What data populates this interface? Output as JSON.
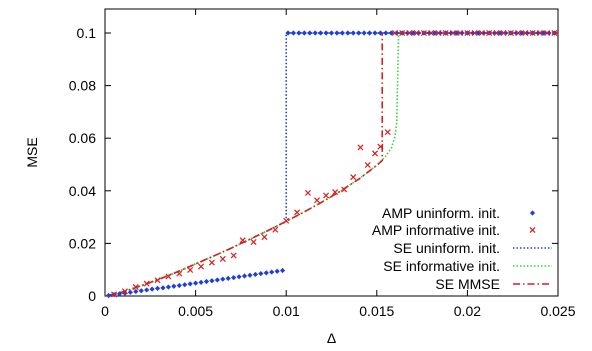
{
  "chart_data": {
    "type": "line",
    "xlabel": "Δ",
    "ylabel": "MSE",
    "xlim": [
      0,
      0.025
    ],
    "ylim": [
      0,
      0.1
    ],
    "x_ticks": [
      "0",
      "0.005",
      "0.01",
      "0.015",
      "0.02",
      "0.025"
    ],
    "x_tick_values": [
      0,
      0.005,
      0.01,
      0.015,
      0.02,
      0.025
    ],
    "y_ticks": [
      "0",
      "0.02",
      "0.04",
      "0.06",
      "0.08",
      "0.1"
    ],
    "y_tick_values": [
      0,
      0.02,
      0.04,
      0.06,
      0.08,
      0.1
    ],
    "grid": false,
    "legend_position": "bottom-right",
    "series": [
      {
        "name": "AMP uninform. init.",
        "kind": "points",
        "marker": "diamond",
        "color": "#1f3fd8",
        "x": [
          0.0002,
          0.0005,
          0.0008,
          0.0011,
          0.0014,
          0.0017,
          0.002,
          0.0023,
          0.0026,
          0.0029,
          0.0032,
          0.0035,
          0.0038,
          0.0041,
          0.0044,
          0.0047,
          0.005,
          0.0053,
          0.0056,
          0.0059,
          0.0062,
          0.0065,
          0.0068,
          0.0071,
          0.0074,
          0.0077,
          0.008,
          0.0083,
          0.0086,
          0.0089,
          0.0092,
          0.0095,
          0.0098,
          0.0101,
          0.0104,
          0.0107,
          0.011,
          0.0113,
          0.0116,
          0.0119,
          0.0122,
          0.0125,
          0.0128,
          0.0131,
          0.0134,
          0.0137,
          0.014,
          0.0143,
          0.0146,
          0.0149,
          0.0152,
          0.0155,
          0.0158,
          0.0161,
          0.0164,
          0.0167,
          0.017,
          0.0173,
          0.0176,
          0.0179,
          0.0182,
          0.0185,
          0.0188,
          0.0191,
          0.0194,
          0.0197,
          0.02,
          0.0203,
          0.0206,
          0.0209,
          0.0212,
          0.0215,
          0.0218,
          0.0221,
          0.0224,
          0.0227,
          0.023,
          0.0233,
          0.0236,
          0.0239,
          0.0242,
          0.0245,
          0.0248
        ],
        "y": [
          0.0002,
          0.0005,
          0.0008,
          0.0011,
          0.0014,
          0.0017,
          0.002,
          0.0023,
          0.0026,
          0.0029,
          0.0031,
          0.0034,
          0.0037,
          0.004,
          0.0043,
          0.0046,
          0.0049,
          0.0052,
          0.0055,
          0.0058,
          0.0061,
          0.0064,
          0.0067,
          0.007,
          0.0073,
          0.0076,
          0.0079,
          0.0082,
          0.0085,
          0.0088,
          0.0091,
          0.0094,
          0.0097,
          0.1,
          0.1,
          0.1,
          0.1,
          0.1,
          0.1,
          0.1,
          0.1,
          0.1,
          0.1,
          0.1,
          0.1,
          0.1,
          0.1,
          0.1,
          0.1,
          0.1,
          0.1,
          0.1,
          0.1,
          0.1,
          0.1,
          0.1,
          0.1,
          0.1,
          0.1,
          0.1,
          0.1,
          0.1,
          0.1,
          0.1,
          0.1,
          0.1,
          0.1,
          0.1,
          0.1,
          0.1,
          0.1,
          0.1,
          0.1,
          0.1,
          0.1,
          0.1,
          0.1,
          0.1,
          0.1,
          0.1,
          0.1,
          0.1,
          0.1
        ]
      },
      {
        "name": "AMP informative init.",
        "kind": "points",
        "marker": "x",
        "color": "#d81f1f",
        "x": [
          0.0005,
          0.0011,
          0.0017,
          0.0023,
          0.0029,
          0.0035,
          0.0041,
          0.0047,
          0.0053,
          0.0059,
          0.0065,
          0.0071,
          0.0076,
          0.0082,
          0.0088,
          0.0094,
          0.01,
          0.0106,
          0.0112,
          0.0117,
          0.0122,
          0.0127,
          0.0132,
          0.0137,
          0.0141,
          0.0145,
          0.0149,
          0.0152,
          0.0156,
          0.016,
          0.0164,
          0.0168,
          0.0172,
          0.0176,
          0.018,
          0.0184,
          0.0188,
          0.0192,
          0.0196,
          0.02,
          0.0204,
          0.0208,
          0.0212,
          0.0216,
          0.022,
          0.0224,
          0.0228,
          0.0232,
          0.0236,
          0.024,
          0.0244,
          0.0248
        ],
        "y": [
          0.0006,
          0.0018,
          0.0034,
          0.0047,
          0.006,
          0.0074,
          0.0085,
          0.0099,
          0.0112,
          0.0127,
          0.0141,
          0.0154,
          0.0212,
          0.0205,
          0.0224,
          0.0252,
          0.0286,
          0.0318,
          0.0392,
          0.0364,
          0.0382,
          0.0395,
          0.0405,
          0.0452,
          0.0565,
          0.0498,
          0.0542,
          0.0568,
          0.0623,
          0.1,
          0.1,
          0.1,
          0.1,
          0.1,
          0.1,
          0.1,
          0.1,
          0.1,
          0.1,
          0.1,
          0.1,
          0.1,
          0.1,
          0.1,
          0.1,
          0.1,
          0.1,
          0.1,
          0.1,
          0.1,
          0.1,
          0.1
        ]
      },
      {
        "name": "SE uninform. init.",
        "kind": "line",
        "dash": "dotted",
        "color": "#1f3fd8",
        "x": [
          0,
          0.001,
          0.002,
          0.003,
          0.004,
          0.005,
          0.006,
          0.007,
          0.008,
          0.009,
          0.01,
          0.01,
          0.025
        ],
        "y": [
          0,
          0.0016,
          0.0039,
          0.0064,
          0.0092,
          0.0122,
          0.0152,
          0.0183,
          0.0216,
          0.0249,
          0.0284,
          0.1,
          0.1
        ]
      },
      {
        "name": "SE informative init.",
        "kind": "line",
        "dash": "dotted",
        "color": "#2fd82f",
        "x": [
          0,
          0.001,
          0.002,
          0.003,
          0.004,
          0.005,
          0.006,
          0.007,
          0.008,
          0.009,
          0.01,
          0.011,
          0.012,
          0.013,
          0.014,
          0.015,
          0.0155,
          0.0158,
          0.016,
          0.0161,
          0.0162,
          0.025
        ],
        "y": [
          0,
          0.0016,
          0.0039,
          0.0064,
          0.0092,
          0.0122,
          0.0152,
          0.0183,
          0.0216,
          0.0249,
          0.0284,
          0.032,
          0.0358,
          0.0399,
          0.0444,
          0.0497,
          0.0532,
          0.0562,
          0.0605,
          0.066,
          0.1,
          0.1
        ]
      },
      {
        "name": "SE MMSE",
        "kind": "line",
        "dash": "dashdot",
        "color": "#d81f1f",
        "x": [
          0,
          0.001,
          0.002,
          0.003,
          0.004,
          0.005,
          0.006,
          0.007,
          0.008,
          0.009,
          0.01,
          0.011,
          0.012,
          0.013,
          0.014,
          0.015,
          0.0153,
          0.0153,
          0.025
        ],
        "y": [
          0,
          0.0016,
          0.0039,
          0.0064,
          0.0092,
          0.0122,
          0.0152,
          0.0183,
          0.0216,
          0.0249,
          0.0284,
          0.032,
          0.0358,
          0.0399,
          0.0444,
          0.0497,
          0.0515,
          0.1,
          0.1
        ]
      }
    ]
  }
}
